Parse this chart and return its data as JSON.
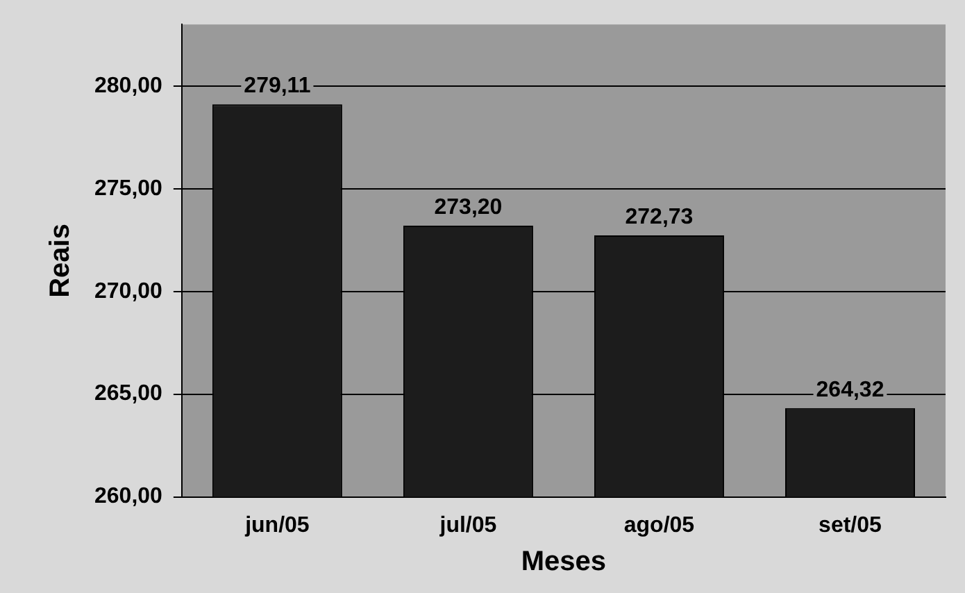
{
  "chart_data": {
    "type": "bar",
    "xlabel": "Meses",
    "ylabel": "Reais",
    "categories": [
      "jun/05",
      "jul/05",
      "ago/05",
      "set/05"
    ],
    "values": [
      279.11,
      273.2,
      272.73,
      264.32
    ],
    "value_labels": [
      "279,11",
      "273,20",
      "272,73",
      "264,32"
    ],
    "color": "#1c1c1c",
    "ylim": [
      260,
      283
    ],
    "yticks": [
      {
        "value": 260,
        "label": "260,00"
      },
      {
        "value": 265,
        "label": "265,00"
      },
      {
        "value": 270,
        "label": "270,00"
      },
      {
        "value": 275,
        "label": "275,00"
      },
      {
        "value": 280,
        "label": "280,00"
      }
    ],
    "grid": "y",
    "legend": false
  }
}
